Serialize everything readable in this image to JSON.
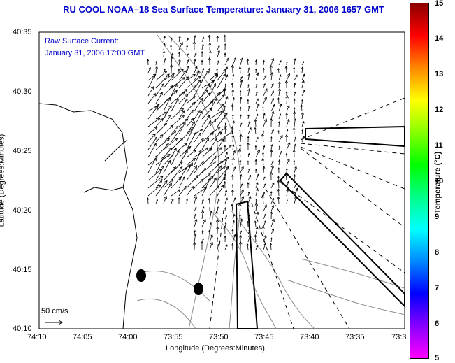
{
  "title": "RU COOL  NOAA–18  Sea Surface Temperature:  January 31, 2006 1657 GMT",
  "annotation": {
    "line1": "Raw Surface Current:",
    "line2": "January 31, 2006 17:00 GMT"
  },
  "scale_label": "50 cm/s",
  "x_axis": {
    "label": "Longitude (Degrees:Minutes)",
    "ticks": [
      "74:10",
      "74:05",
      "74:00",
      "73:55",
      "73:50",
      "73:45",
      "73:40",
      "73:35",
      "73:3"
    ]
  },
  "y_axis": {
    "label": "Latitude (Degrees:Minutes)",
    "ticks": [
      "40:35",
      "40:30",
      "40:25",
      "40:20",
      "40:15",
      "40:10"
    ]
  },
  "colorbar": {
    "label": "Temperature (°C)",
    "ticks": [
      "15",
      "14",
      "13",
      "12",
      "11",
      "10",
      "9",
      "8",
      "7",
      "6",
      "5"
    ],
    "range": [
      5,
      15
    ],
    "colors": [
      "#ff00ff",
      "#8800ff",
      "#0000ff",
      "#0088ff",
      "#00ffff",
      "#00ff88",
      "#00ff00",
      "#88ff00",
      "#ffff00",
      "#ff8800",
      "#ff0000",
      "#8b0000"
    ]
  },
  "colors": {
    "title": "#0000cc",
    "contours": "#8c8c8c",
    "arrows": "#000000"
  }
}
